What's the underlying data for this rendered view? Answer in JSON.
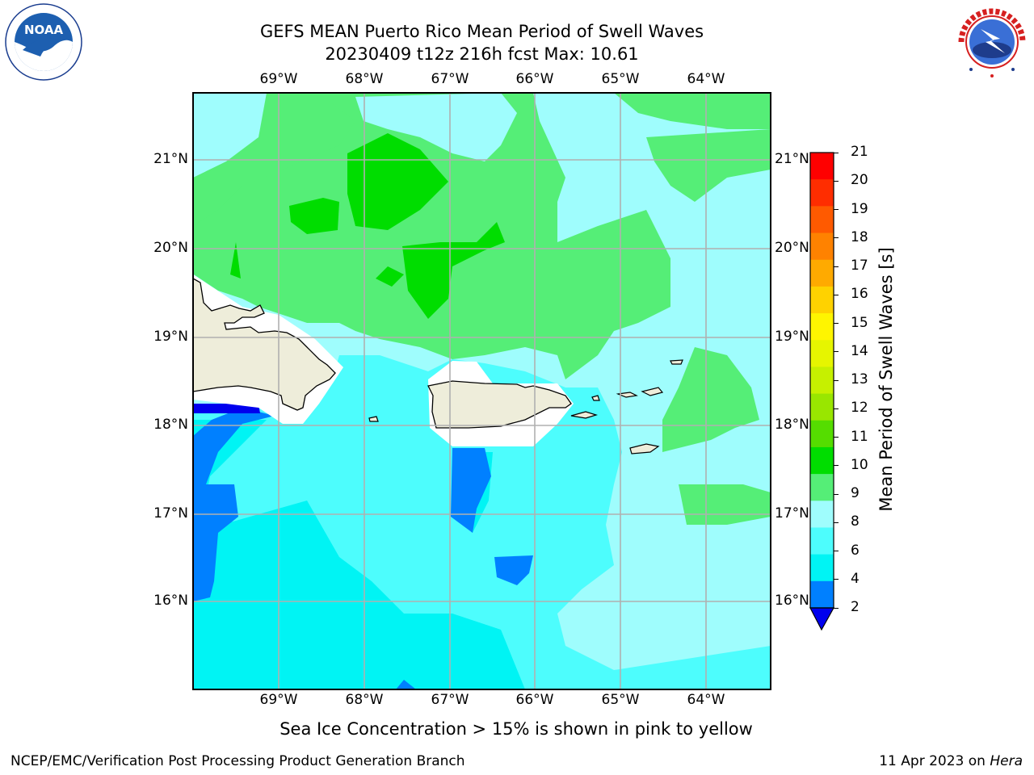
{
  "title": {
    "line1": "GEFS MEAN Puerto Rico Mean Period of Swell Waves",
    "line2": "20230409 t12z 216h fcst   Max: 10.61"
  },
  "map": {
    "lon_labels": [
      "69°W",
      "68°W",
      "67°W",
      "66°W",
      "65°W",
      "64°W"
    ],
    "lat_labels": [
      "21°N",
      "20°N",
      "19°N",
      "18°N",
      "17°N",
      "16°N"
    ],
    "colors": {
      "land": "#eeedda",
      "frame": "#000000",
      "grid": "#b0b0b0"
    }
  },
  "colorbar": {
    "label": "Mean Period of Swell Waves [s]",
    "ticks": [
      "21",
      "20",
      "19",
      "18",
      "17",
      "16",
      "15",
      "14",
      "13",
      "12",
      "11",
      "10",
      "9",
      "8",
      "6",
      "4",
      "2"
    ],
    "colors": [
      "#ff0000",
      "#ff2d00",
      "#ff5a00",
      "#ff8200",
      "#ffaa00",
      "#ffd200",
      "#fff500",
      "#e6f500",
      "#c6f000",
      "#99e600",
      "#55dd00",
      "#00dd00",
      "#55ee77",
      "#9ffdfd",
      "#4dfdfd",
      "#00f4f4",
      "#0080ff"
    ],
    "under_color": "#0000ee"
  },
  "logos": {
    "noaa": "NOAA",
    "nws_text": "NATIONAL WEATHER SERVICE"
  },
  "note": "Sea Ice Concentration > 15% is shown in pink to yellow",
  "footer": {
    "left": "NCEP/EMC/Verification Post Processing Product Generation Branch",
    "date": "11 Apr 2023 on ",
    "machine": "Hera"
  }
}
